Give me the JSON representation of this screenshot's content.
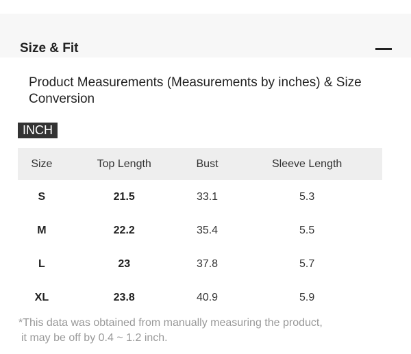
{
  "section": {
    "title": "Size & Fit",
    "toggle_icon": "minus-icon"
  },
  "description": "Product Measurements (Measurements by inches) & Size Conversion",
  "unit_badge": "INCH",
  "table": {
    "headers": [
      "Size",
      "Top Length",
      "Bust",
      "Sleeve Length"
    ],
    "rows": [
      [
        "S",
        "21.5",
        "33.1",
        "5.3"
      ],
      [
        "M",
        "22.2",
        "35.4",
        "5.5"
      ],
      [
        "L",
        "23",
        "37.8",
        "5.7"
      ],
      [
        "XL",
        "23.8",
        "40.9",
        "5.9"
      ]
    ]
  },
  "note": {
    "line1": "*This data was obtained from manually measuring the product,",
    "line2": "it may be off by 0.4 ~ 1.2 inch."
  }
}
